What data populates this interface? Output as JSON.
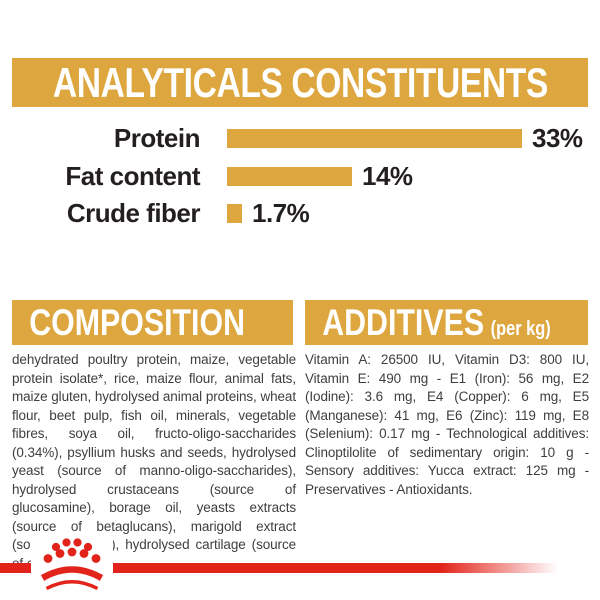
{
  "header": {
    "title": "ANALYTICALS CONSTITUENTS"
  },
  "chart_data": {
    "type": "bar",
    "orientation": "horizontal",
    "title": "ANALYTICALS CONSTITUENTS",
    "categories": [
      "Protein",
      "Fat content",
      "Crude fiber"
    ],
    "values": [
      33,
      14,
      1.7
    ],
    "value_labels": [
      "33%",
      "14%",
      "1.7%"
    ],
    "unit": "%",
    "xlim": [
      0,
      33
    ],
    "bar_color": "#DDA63F",
    "grid": false,
    "legend": false
  },
  "composition": {
    "title": "COMPOSITION",
    "body": "dehydrated poultry protein, maize, vegetable protein isolate*, rice, maize flour, animal fats, maize gluten, hydrolysed animal proteins, wheat flour, beet pulp, fish oil, minerals, vegetable fibres, soya oil, fructo-oligo-saccharides (0.34%), psyllium husks and seeds, hydrolysed yeast (source of manno-oligo-saccharides), hydrolysed crustaceans (source of glucosamine), borage oil, yeasts extracts (source of betaglucans), marigold extract (source of lutein), hydrolysed cartilage (source of chondroitin)."
  },
  "additives": {
    "title": "ADDITIVES",
    "unit_suffix": "(per kg)",
    "body": "Vitamin A: 26500 IU, Vitamin D3: 800 IU, Vitamin E: 490 mg - E1 (Iron): 56 mg, E2 (Iodine): 3.6 mg, E4 (Copper): 6 mg, E5 (Manganese): 41 mg, E6 (Zinc): 119 mg, E8 (Selenium): 0.17 mg - Technological additives: Clinoptilolite of sedimentary origin: 10 g - Sensory additives: Yucca extract: 125 mg - Preservatives - Antioxidants.",
    "title_full": "ADDITIVES (per kg)"
  },
  "footer": {
    "logo": "royal-canin-crown"
  },
  "colors": {
    "gold": "#DDA63F",
    "red": "#E2231A",
    "banner_text": "#FFFFFF",
    "chart_text": "#231F20",
    "body_text": "#3E3E3E",
    "background": "#FFFFFF"
  }
}
